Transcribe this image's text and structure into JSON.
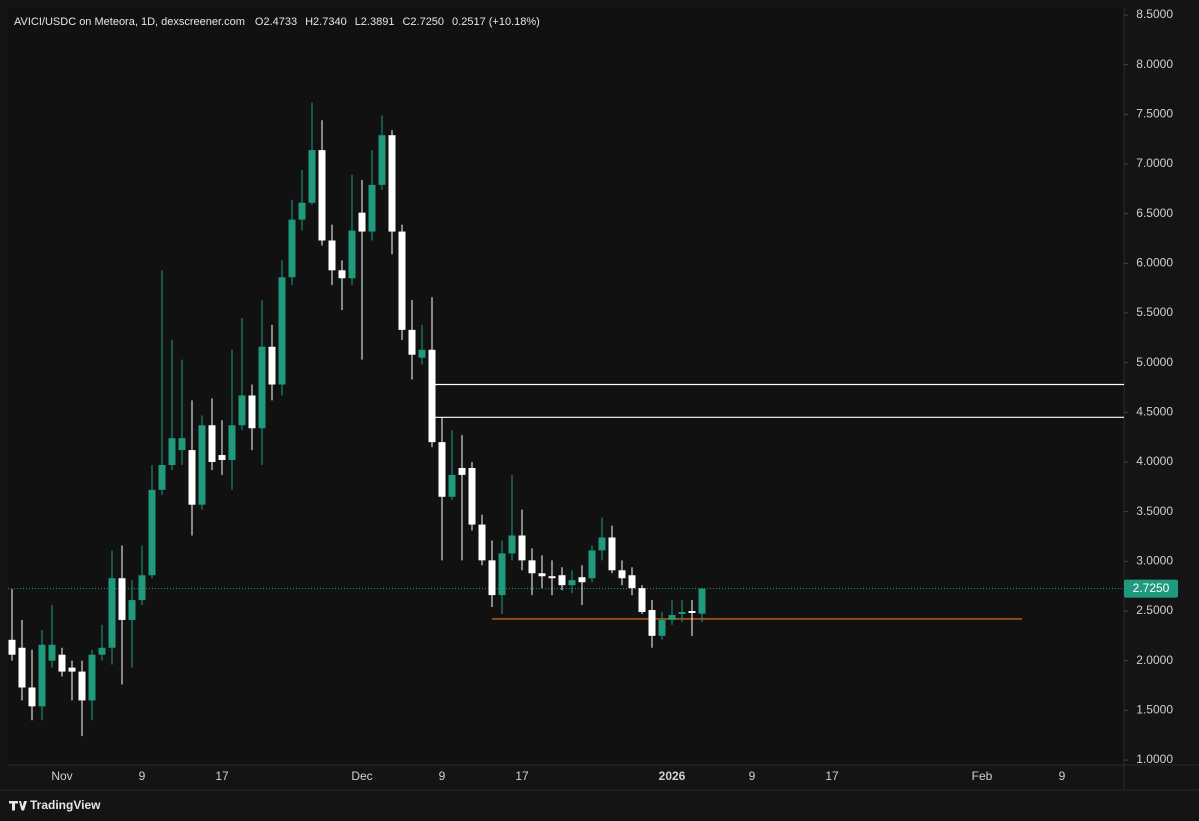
{
  "chart_data": {
    "type": "candlestick",
    "title": "AVICI/USDC on Meteora, 1D, dexscreener.com",
    "ohlc_legend": [
      "O2.4733",
      "H2.7340",
      "L2.3891",
      "C2.7250",
      "0.2517 (+10.18%)"
    ],
    "categories": [
      null,
      null,
      null,
      null,
      null,
      "Nov",
      null,
      null,
      null,
      null,
      null,
      null,
      null,
      "9",
      null,
      null,
      null,
      null,
      null,
      null,
      null,
      "17",
      null,
      null,
      null,
      null,
      null,
      null,
      null,
      null,
      null,
      null,
      null,
      null,
      null,
      "Dec",
      null,
      null,
      null,
      null,
      null,
      null,
      null,
      "9",
      null,
      null,
      null,
      null,
      null,
      null,
      null,
      "17",
      null,
      null,
      null,
      null,
      null,
      null,
      null,
      null,
      null,
      null,
      null,
      null,
      null,
      null,
      "2026",
      null,
      null,
      null,
      null,
      null,
      null,
      null,
      "9",
      null,
      null,
      null,
      null,
      null,
      null,
      null,
      "17",
      null,
      null,
      null,
      null,
      null,
      null,
      null,
      null,
      null,
      null,
      null,
      null,
      null,
      null,
      "Feb",
      null,
      null,
      null,
      null,
      null,
      null,
      null,
      "9",
      null,
      null,
      null,
      null,
      null,
      null
    ],
    "open": [
      2.21,
      2.13,
      1.73,
      1.54,
      2.0,
      2.06,
      1.93,
      1.89,
      1.6,
      2.06,
      2.13,
      2.83,
      2.41,
      2.61,
      2.86,
      3.72,
      3.97,
      4.12,
      4.12,
      3.57,
      4.37,
      4.07,
      4.02,
      4.37,
      4.67,
      4.34,
      5.16,
      4.78,
      5.86,
      6.44,
      6.61,
      7.14,
      6.23,
      5.93,
      5.85,
      6.51,
      6.32,
      6.79,
      7.29,
      6.32,
      5.33,
      5.05,
      5.13,
      4.2,
      3.65,
      3.94,
      3.94,
      3.37,
      3.01,
      2.66,
      3.08,
      3.26,
      3.01,
      2.88,
      2.85,
      2.86,
      2.76,
      2.84,
      2.83,
      3.11,
      3.24,
      2.91,
      2.86,
      2.73,
      2.51,
      2.25,
      2.41,
      2.47,
      2.5,
      2.4733,
      null,
      null,
      null,
      null,
      null,
      null,
      null,
      null,
      null,
      null,
      null,
      null,
      null,
      null,
      null,
      null,
      null,
      null,
      null,
      null,
      null,
      null,
      null,
      null,
      null,
      null,
      null,
      null,
      null,
      null,
      null,
      null,
      null,
      null,
      null,
      null,
      null,
      null,
      null,
      null,
      null,
      null
    ],
    "high": [
      2.72,
      2.41,
      2.11,
      2.31,
      2.56,
      2.13,
      2.0,
      2.0,
      2.11,
      2.36,
      3.11,
      3.16,
      2.81,
      3.16,
      3.97,
      5.93,
      5.23,
      5.03,
      4.62,
      4.47,
      4.64,
      4.42,
      5.13,
      5.45,
      4.78,
      5.63,
      5.38,
      6.03,
      6.64,
      6.94,
      7.62,
      7.44,
      6.39,
      6.03,
      6.89,
      6.84,
      7.14,
      7.49,
      7.34,
      6.39,
      5.63,
      5.38,
      5.66,
      4.45,
      4.32,
      4.27,
      4.0,
      3.47,
      3.21,
      3.21,
      3.87,
      3.52,
      3.13,
      3.06,
      3.01,
      2.94,
      2.91,
      2.96,
      3.16,
      3.44,
      3.36,
      3.01,
      2.94,
      2.76,
      2.61,
      2.49,
      2.61,
      2.61,
      2.61,
      2.734,
      null,
      null,
      null,
      null,
      null,
      null,
      null,
      null,
      null,
      null,
      null,
      null,
      null,
      null,
      null,
      null,
      null,
      null,
      null,
      null,
      null,
      null,
      null,
      null,
      null,
      null,
      null,
      null,
      null,
      null,
      null,
      null,
      null,
      null,
      null,
      null,
      null,
      null,
      null,
      null,
      null,
      null
    ],
    "low": [
      2.0,
      1.6,
      1.4,
      1.4,
      1.93,
      1.84,
      1.6,
      1.24,
      1.4,
      2.0,
      1.96,
      1.76,
      1.93,
      2.56,
      2.83,
      3.67,
      3.92,
      3.97,
      3.26,
      3.52,
      3.92,
      3.87,
      3.72,
      4.32,
      4.12,
      3.97,
      4.62,
      4.67,
      5.78,
      6.33,
      6.59,
      6.18,
      5.78,
      5.53,
      5.78,
      5.03,
      6.23,
      6.74,
      6.09,
      5.23,
      4.83,
      4.98,
      4.15,
      3.01,
      3.62,
      3.01,
      3.31,
      2.96,
      2.54,
      2.47,
      3.01,
      2.91,
      2.66,
      2.73,
      2.66,
      2.71,
      2.68,
      2.56,
      2.79,
      3.01,
      2.88,
      2.76,
      2.66,
      2.47,
      2.13,
      2.21,
      2.36,
      2.39,
      2.25,
      2.3891,
      null,
      null,
      null,
      null,
      null,
      null,
      null,
      null,
      null,
      null,
      null,
      null,
      null,
      null,
      null,
      null,
      null,
      null,
      null,
      null,
      null,
      null,
      null,
      null,
      null,
      null,
      null,
      null,
      null,
      null,
      null,
      null,
      null,
      null,
      null,
      null,
      null,
      null,
      null,
      null,
      null,
      null
    ],
    "close": [
      2.06,
      1.73,
      1.54,
      2.16,
      2.16,
      1.89,
      1.89,
      1.6,
      2.06,
      2.13,
      2.83,
      2.41,
      2.61,
      2.86,
      3.72,
      3.97,
      4.24,
      4.24,
      3.57,
      4.37,
      4.0,
      4.02,
      4.37,
      4.67,
      4.34,
      5.16,
      4.78,
      5.86,
      6.44,
      6.61,
      7.14,
      6.23,
      5.93,
      5.85,
      6.33,
      6.32,
      6.79,
      7.29,
      6.32,
      5.33,
      5.08,
      5.13,
      4.2,
      3.65,
      3.87,
      3.87,
      3.37,
      3.01,
      2.66,
      3.08,
      3.26,
      3.01,
      2.88,
      2.85,
      2.83,
      2.76,
      2.81,
      2.79,
      3.11,
      3.24,
      2.91,
      2.83,
      2.73,
      2.49,
      2.25,
      2.41,
      2.46,
      2.49,
      2.48,
      2.725,
      null,
      null,
      null,
      null,
      null,
      null,
      null,
      null,
      null,
      null,
      null,
      null,
      null,
      null,
      null,
      null,
      null,
      null,
      null,
      null,
      null,
      null,
      null,
      null,
      null,
      null,
      null,
      null,
      null,
      null,
      null,
      null,
      null,
      null,
      null,
      null,
      null,
      null,
      null,
      null,
      null,
      null
    ],
    "up_color": "#1f9a7e",
    "down_color": "#ffffff",
    "ylim": [
      1.0,
      8.5
    ],
    "yticks": [
      {
        "value": 8.5,
        "label": "8.5000"
      },
      {
        "value": 8.0,
        "label": "8.0000"
      },
      {
        "value": 7.5,
        "label": "7.5000"
      },
      {
        "value": 7.0,
        "label": "7.0000"
      },
      {
        "value": 6.5,
        "label": "6.5000"
      },
      {
        "value": 6.0,
        "label": "6.0000"
      },
      {
        "value": 5.5,
        "label": "5.5000"
      },
      {
        "value": 5.0,
        "label": "5.0000"
      },
      {
        "value": 4.5,
        "label": "4.5000"
      },
      {
        "value": 4.0,
        "label": "4.0000"
      },
      {
        "value": 3.5,
        "label": "3.5000"
      },
      {
        "value": 3.0,
        "label": "3.0000"
      },
      {
        "value": 2.5,
        "label": "2.5000"
      },
      {
        "value": 2.0,
        "label": "2.0000"
      },
      {
        "value": 1.5,
        "label": "1.5000"
      },
      {
        "value": 1.0,
        "label": "1.0000"
      }
    ],
    "last_price": {
      "value": 2.725,
      "label": "2.7250"
    },
    "levels": [
      {
        "value": 4.78,
        "color": "#ffffff"
      },
      {
        "value": 4.45,
        "color": "#ffffff"
      },
      {
        "value": 2.42,
        "color": "#f0731f"
      }
    ],
    "grid": false,
    "footer": "TradingView"
  }
}
